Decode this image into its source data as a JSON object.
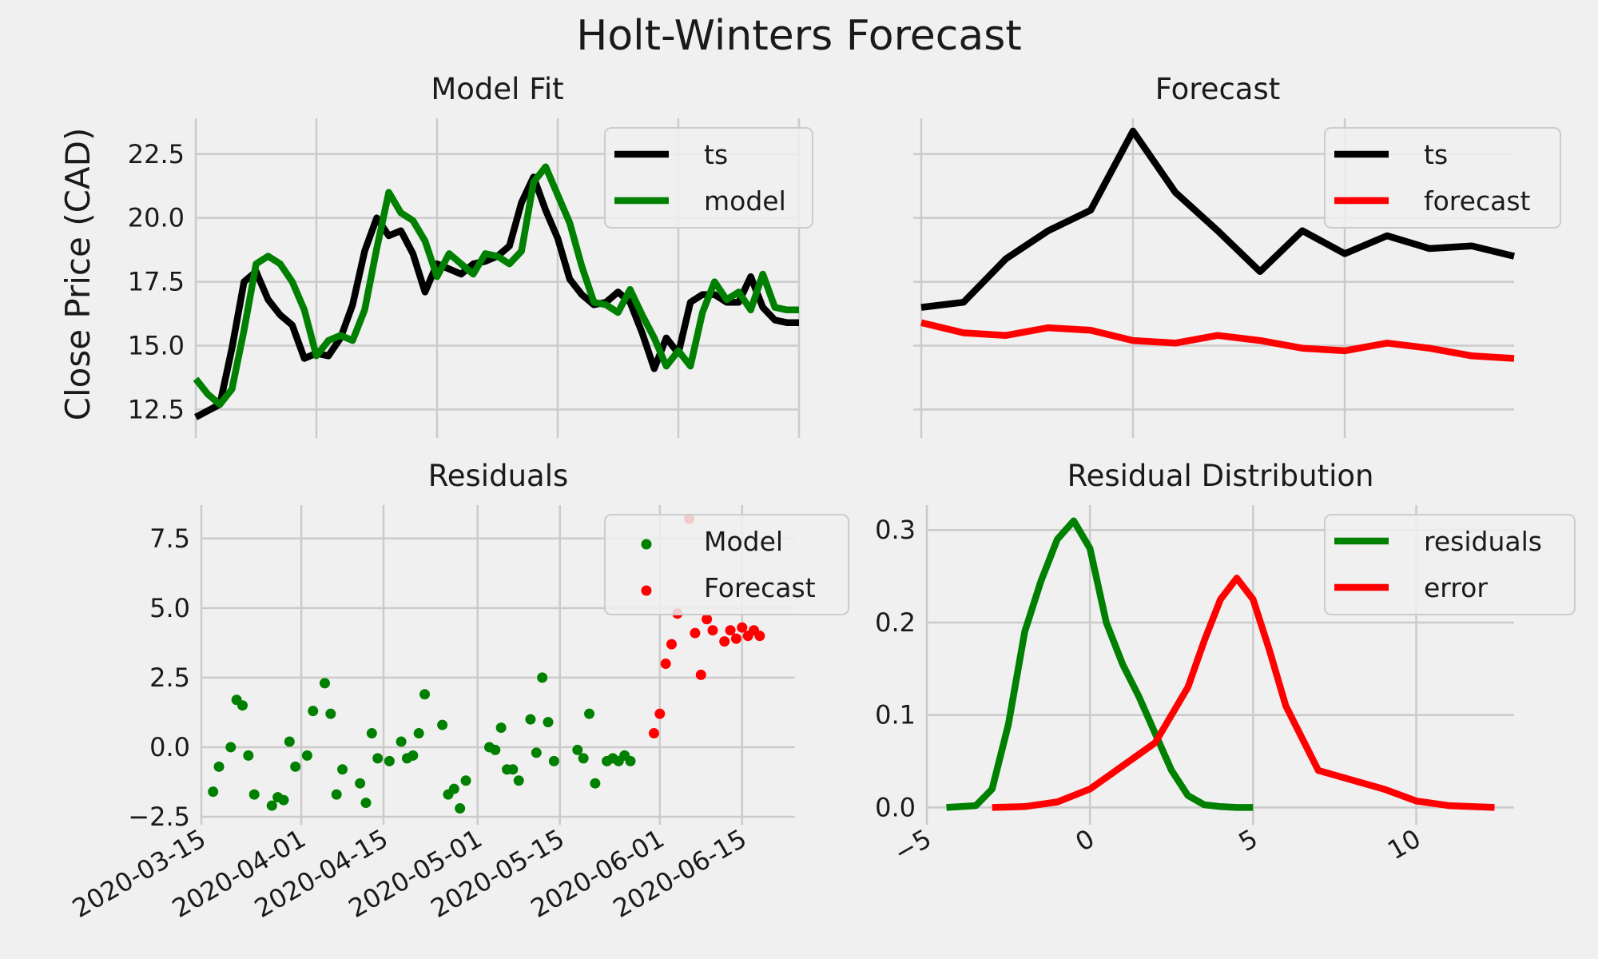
{
  "figure": {
    "title": "Holt-Winters Forecast"
  },
  "chart_data": [
    {
      "id": "fit",
      "type": "line",
      "title": "Model Fit",
      "ylabel": "Close Price (CAD)",
      "xlim": [
        0,
        50
      ],
      "ylim": [
        11.7,
        23.9
      ],
      "yticks": [
        12.5,
        15.0,
        17.5,
        20.0,
        22.5
      ],
      "ytick_labels": [
        "12.5",
        "15.0",
        "17.5",
        "20.0",
        "22.5"
      ],
      "xgrid": [
        0,
        10,
        20,
        30,
        40,
        50
      ],
      "legend": "top-right",
      "series": [
        {
          "name": "ts",
          "color": "#000000",
          "x": [
            0,
            2,
            3,
            4,
            5,
            6,
            7,
            8,
            9,
            10,
            11,
            12,
            13,
            14,
            15,
            16,
            17,
            18,
            19,
            20,
            21,
            22,
            23,
            24,
            25,
            26,
            27,
            28,
            29,
            30,
            31,
            32,
            33,
            34,
            35,
            36,
            37,
            38,
            39,
            40,
            41,
            42,
            43,
            44,
            45,
            46,
            47,
            48,
            49,
            50
          ],
          "y": [
            12.2,
            12.7,
            14.9,
            17.5,
            17.9,
            16.8,
            16.2,
            15.8,
            14.5,
            14.7,
            14.6,
            15.3,
            16.6,
            18.7,
            20.0,
            19.3,
            19.5,
            18.6,
            17.1,
            18.2,
            18.0,
            17.8,
            18.2,
            18.3,
            18.5,
            18.9,
            20.6,
            21.6,
            20.3,
            19.2,
            17.6,
            17.0,
            16.6,
            16.7,
            17.1,
            16.7,
            15.5,
            14.1,
            15.3,
            14.7,
            16.7,
            17.0,
            17.0,
            16.7,
            16.7,
            17.7,
            16.5,
            16.0,
            15.9,
            15.9
          ]
        },
        {
          "name": "model",
          "color": "#008000",
          "x": [
            0,
            1,
            2,
            3,
            4,
            5,
            6,
            7,
            8,
            9,
            10,
            11,
            12,
            13,
            14,
            15,
            16,
            17,
            18,
            19,
            20,
            21,
            22,
            23,
            24,
            25,
            26,
            27,
            28,
            29,
            30,
            31,
            32,
            33,
            34,
            35,
            36,
            37,
            38,
            39,
            40,
            41,
            42,
            43,
            44,
            45,
            46,
            47,
            48,
            49,
            50
          ],
          "y": [
            13.7,
            13.1,
            12.7,
            13.3,
            15.6,
            18.2,
            18.5,
            18.2,
            17.5,
            16.4,
            14.6,
            15.2,
            15.4,
            15.2,
            16.4,
            18.8,
            21.0,
            20.2,
            19.9,
            19.1,
            17.7,
            18.6,
            18.2,
            17.8,
            18.6,
            18.5,
            18.2,
            18.7,
            21.4,
            22.0,
            20.9,
            19.8,
            18.1,
            16.7,
            16.6,
            16.3,
            17.2,
            16.2,
            15.3,
            14.2,
            14.8,
            14.2,
            16.3,
            17.5,
            16.8,
            17.1,
            16.4,
            17.8,
            16.5,
            16.4,
            16.4
          ]
        }
      ]
    },
    {
      "id": "forecast",
      "type": "line",
      "title": "Forecast",
      "xlim": [
        0,
        14
      ],
      "ylim": [
        11.7,
        23.9
      ],
      "yticks": [
        12.5,
        15.0,
        17.5,
        20.0,
        22.5
      ],
      "xgrid": [
        0,
        5,
        10
      ],
      "legend": "top-right",
      "series": [
        {
          "name": "ts",
          "color": "#000000",
          "x": [
            0,
            1,
            2,
            3,
            4,
            5,
            6,
            7,
            8,
            9,
            10,
            11,
            12,
            13,
            14
          ],
          "y": [
            16.5,
            16.7,
            18.4,
            19.5,
            20.3,
            23.4,
            21.0,
            19.5,
            17.9,
            19.5,
            18.6,
            19.3,
            18.8,
            18.9,
            18.5
          ]
        },
        {
          "name": "forecast",
          "color": "#ff0000",
          "x": [
            0,
            1,
            2,
            3,
            4,
            5,
            6,
            7,
            8,
            9,
            10,
            11,
            12,
            13,
            14
          ],
          "y": [
            15.9,
            15.5,
            15.4,
            15.7,
            15.6,
            15.2,
            15.1,
            15.4,
            15.2,
            14.9,
            14.8,
            15.1,
            14.9,
            14.6,
            14.5
          ]
        }
      ]
    },
    {
      "id": "residuals",
      "type": "scatter",
      "title": "Residuals",
      "x_is_date": true,
      "xlim": [
        "2020-03-15",
        "2020-06-24"
      ],
      "ylim": [
        -2.5,
        8.7
      ],
      "yticks": [
        -2.5,
        0.0,
        2.5,
        5.0,
        7.5
      ],
      "ytick_labels": [
        "−2.5",
        "0.0",
        "2.5",
        "5.0",
        "7.5"
      ],
      "xticks": [
        "2020-03-15",
        "2020-04-01",
        "2020-04-15",
        "2020-05-01",
        "2020-05-15",
        "2020-06-01",
        "2020-06-15"
      ],
      "xtick_labels": [
        "2020-03-15",
        "2020-04-01",
        "2020-04-15",
        "2020-05-01",
        "2020-05-15",
        "2020-06-01",
        "2020-06-15"
      ],
      "legend": "top-right",
      "series": [
        {
          "name": "Model",
          "color": "#008000",
          "x": [
            "2020-03-17",
            "2020-03-18",
            "2020-03-20",
            "2020-03-21",
            "2020-03-22",
            "2020-03-23",
            "2020-03-24",
            "2020-03-27",
            "2020-03-28",
            "2020-03-29",
            "2020-03-30",
            "2020-03-31",
            "2020-04-02",
            "2020-04-03",
            "2020-04-05",
            "2020-04-06",
            "2020-04-07",
            "2020-04-08",
            "2020-04-11",
            "2020-04-12",
            "2020-04-13",
            "2020-04-14",
            "2020-04-16",
            "2020-04-18",
            "2020-04-19",
            "2020-04-20",
            "2020-04-21",
            "2020-04-22",
            "2020-04-25",
            "2020-04-26",
            "2020-04-27",
            "2020-04-28",
            "2020-04-29",
            "2020-05-03",
            "2020-05-04",
            "2020-05-05",
            "2020-05-06",
            "2020-05-07",
            "2020-05-08",
            "2020-05-10",
            "2020-05-11",
            "2020-05-12",
            "2020-05-13",
            "2020-05-14",
            "2020-05-18",
            "2020-05-19",
            "2020-05-20",
            "2020-05-21",
            "2020-05-23",
            "2020-05-24",
            "2020-05-25",
            "2020-05-26",
            "2020-05-27"
          ],
          "y": [
            -1.6,
            -0.7,
            0.0,
            1.7,
            1.5,
            -0.3,
            -1.7,
            -2.1,
            -1.8,
            -1.9,
            0.2,
            -0.7,
            -0.3,
            1.3,
            2.3,
            1.2,
            -1.7,
            -0.8,
            -1.3,
            -2.0,
            0.5,
            -0.4,
            -0.5,
            0.2,
            -0.4,
            -0.3,
            0.5,
            1.9,
            0.8,
            -1.7,
            -1.5,
            -2.2,
            -1.2,
            0.0,
            -0.1,
            0.7,
            -0.8,
            -0.8,
            -1.2,
            1.0,
            -0.2,
            2.5,
            0.9,
            -0.5,
            -0.1,
            -0.4,
            1.2,
            -1.3,
            -0.5,
            -0.4,
            -0.5,
            -0.3,
            -0.5
          ]
        },
        {
          "name": "Forecast",
          "color": "#ff0000",
          "x": [
            "2020-05-31",
            "2020-06-01",
            "2020-06-02",
            "2020-06-03",
            "2020-06-04",
            "2020-06-06",
            "2020-06-07",
            "2020-06-08",
            "2020-06-09",
            "2020-06-10",
            "2020-06-12",
            "2020-06-13",
            "2020-06-14",
            "2020-06-15",
            "2020-06-16",
            "2020-06-17",
            "2020-06-18"
          ],
          "y": [
            0.5,
            1.2,
            3.0,
            3.7,
            4.8,
            8.2,
            4.1,
            2.6,
            4.6,
            4.2,
            3.8,
            4.2,
            3.9,
            4.3,
            4.0,
            4.2,
            4.0
          ]
        }
      ]
    },
    {
      "id": "distribution",
      "type": "line",
      "title": "Residual Distribution",
      "xlim": [
        -5,
        13
      ],
      "ylim": [
        -0.01,
        0.327
      ],
      "yticks": [
        0.0,
        0.1,
        0.2,
        0.3
      ],
      "ytick_labels": [
        "0.0",
        "0.1",
        "0.2",
        "0.3"
      ],
      "xticks": [
        -5,
        0,
        5,
        10
      ],
      "xtick_labels": [
        "−5",
        "0",
        "5",
        "10"
      ],
      "legend": "top-right",
      "series": [
        {
          "name": "residuals",
          "color": "#008000",
          "x": [
            -4.4,
            -3.5,
            -3.0,
            -2.5,
            -2.0,
            -1.5,
            -1.0,
            -0.5,
            0.0,
            0.5,
            1.0,
            1.5,
            2.0,
            2.5,
            3.0,
            3.5,
            4.0,
            4.5,
            5.0
          ],
          "y": [
            0.0,
            0.002,
            0.02,
            0.09,
            0.19,
            0.245,
            0.29,
            0.31,
            0.28,
            0.2,
            0.155,
            0.12,
            0.08,
            0.04,
            0.013,
            0.003,
            0.001,
            0.0,
            0.0
          ]
        },
        {
          "name": "error",
          "color": "#ff0000",
          "x": [
            -3.0,
            -2.0,
            -1.0,
            0.0,
            1.0,
            2.0,
            3.0,
            3.5,
            4.0,
            4.5,
            5.0,
            5.5,
            6.0,
            7.0,
            8.0,
            9.0,
            10.0,
            11.0,
            12.4
          ],
          "y": [
            0.0,
            0.001,
            0.006,
            0.02,
            0.045,
            0.07,
            0.13,
            0.18,
            0.225,
            0.248,
            0.225,
            0.17,
            0.11,
            0.04,
            0.03,
            0.02,
            0.007,
            0.002,
            0.0
          ]
        }
      ]
    }
  ]
}
